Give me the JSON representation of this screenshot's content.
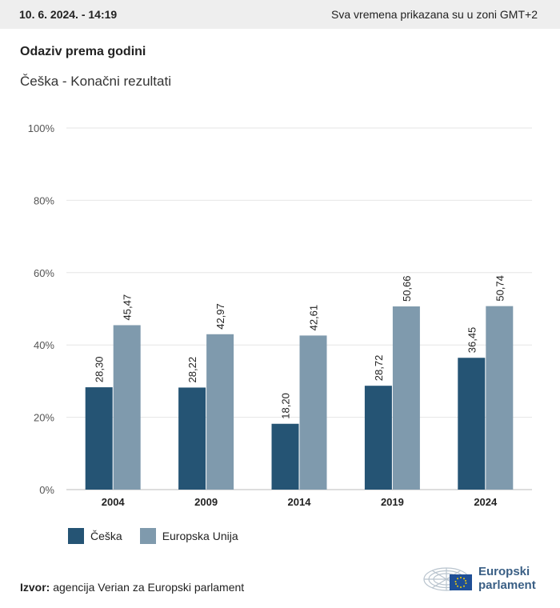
{
  "header": {
    "date": "10. 6. 2024. - 14:19",
    "timezone_note": "Sva vremena prikazana su u zoni GMT+2"
  },
  "title": "Odaziv prema godini",
  "subtitle": "Češka - Konačni rezultati",
  "colors": {
    "series_1": "#255474",
    "series_2": "#7f9aad",
    "grid": "#e6e6e6",
    "axis": "#bbbbbb"
  },
  "chart_data": {
    "type": "bar",
    "categories": [
      "2004",
      "2009",
      "2014",
      "2019",
      "2024"
    ],
    "series": [
      {
        "name": "Češka",
        "values": [
          28.3,
          28.22,
          18.2,
          28.72,
          36.45
        ],
        "labels": [
          "28,30",
          "28,22",
          "18,20",
          "28,72",
          "36,45"
        ]
      },
      {
        "name": "Europska Unija",
        "values": [
          45.47,
          42.97,
          42.61,
          50.66,
          50.74
        ],
        "labels": [
          "45,47",
          "42,97",
          "42,61",
          "50,66",
          "50,74"
        ]
      }
    ],
    "ylim": [
      0,
      100
    ],
    "yticks": [
      0,
      20,
      40,
      60,
      80,
      100
    ],
    "ytick_labels": [
      "0%",
      "20%",
      "40%",
      "60%",
      "80%",
      "100%"
    ],
    "grid": true,
    "legend": "bottom-left"
  },
  "source": {
    "label": "Izvor:",
    "text": "agencija Verian za Europski parlament"
  },
  "logo": {
    "line1": "Europski",
    "line2": "parlament",
    "icon": "european-parliament-logo-icon"
  }
}
